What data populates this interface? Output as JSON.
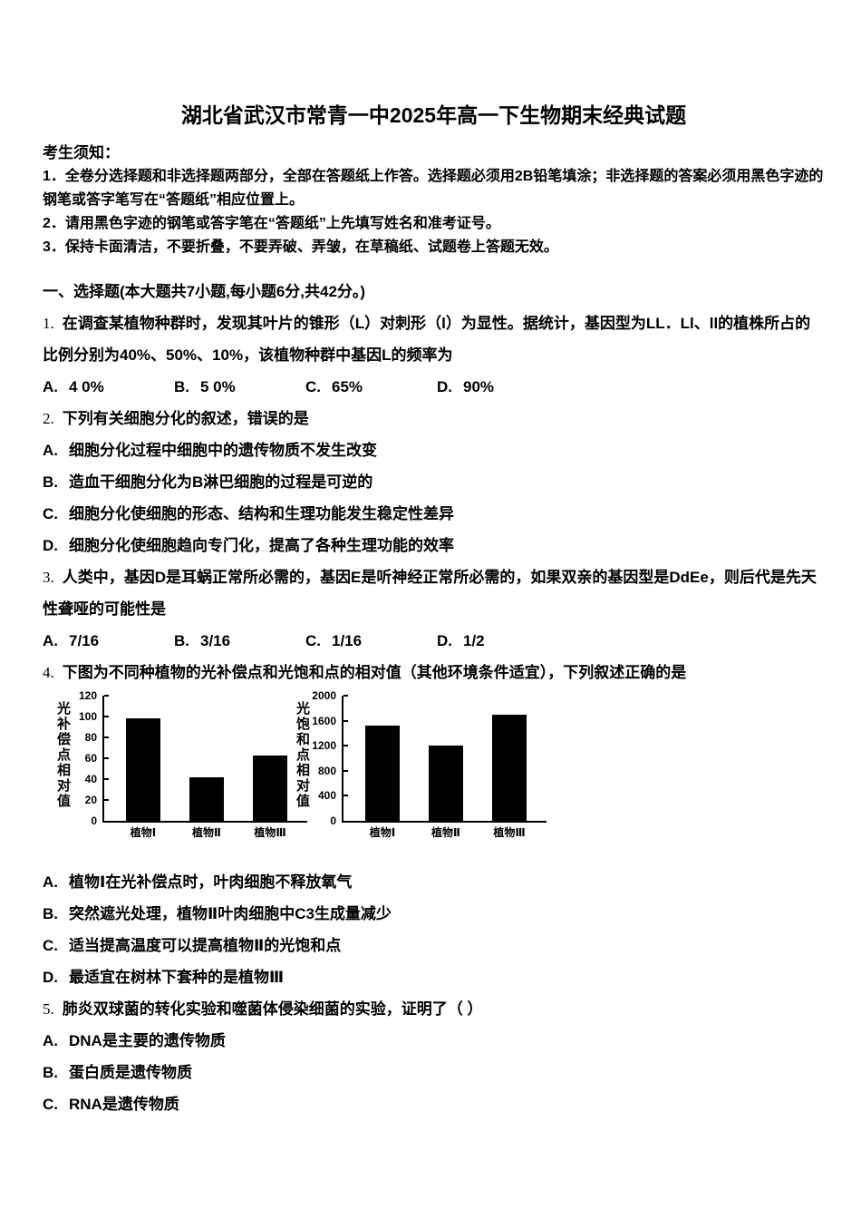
{
  "doc": {
    "title": "湖北省武汉市常青一中2025年高一下生物期末经典试题",
    "notice": {
      "heading": "考生须知：",
      "items": [
        "1．全卷分选择题和非选择题两部分，全部在答题纸上作答。选择题必须用2B铅笔填涂；非选择题的答案必须用黑色字迹的钢笔或答字笔写在“答题纸”相应位置上。",
        "2．请用黑色字迹的钢笔或答字笔在“答题纸”上先填写姓名和准考证号。",
        "3．保持卡面清洁，不要折叠，不要弄破、弄皱，在草稿纸、试题卷上答题无效。"
      ]
    },
    "section_heading": "一、选择题(本大题共7小题,每小题6分,共42分。)",
    "questions": [
      {
        "number": "1.",
        "text": "在调查某植物种群时，发现其叶片的锥形（L）对刺形（l）为显性。据统计，基因型为LL．Ll、ll的植株所占的比例分别为40%、50%、10%，该植物种群中基因L的频率为",
        "options": [
          {
            "label": "A.",
            "text": "4 0%"
          },
          {
            "label": "B.",
            "text": "5 0%"
          },
          {
            "label": "C.",
            "text": "65%"
          },
          {
            "label": "D.",
            "text": "90%"
          }
        ]
      },
      {
        "number": "2.",
        "text": "下列有关细胞分化的叙述，错误的是",
        "options": [
          {
            "label": "A.",
            "text": "细胞分化过程中细胞中的遗传物质不发生改变"
          },
          {
            "label": "B.",
            "text": "造血干细胞分化为B淋巴细胞的过程是可逆的"
          },
          {
            "label": "C.",
            "text": "细胞分化使细胞的形态、结构和生理功能发生稳定性差异"
          },
          {
            "label": "D.",
            "text": "细胞分化使细胞趋向专门化，提高了各种生理功能的效率"
          }
        ]
      },
      {
        "number": "3.",
        "text": "人类中，基因D是耳蜗正常所必需的，基因E是听神经正常所必需的，如果双亲的基因型是DdEe，则后代是先天性聋哑的可能性是",
        "options": [
          {
            "label": "A.",
            "text": "7/16"
          },
          {
            "label": "B.",
            "text": "3/16"
          },
          {
            "label": "C.",
            "text": "1/16"
          },
          {
            "label": "D.",
            "text": "1/2"
          }
        ]
      },
      {
        "number": "4.",
        "text": "下图为不同种植物的光补偿点和光饱和点的相对值（其他环境条件适宜），下列叙述正确的是",
        "options": [
          {
            "label": "A.",
            "text": "植物Ⅰ在光补偿点时，叶肉细胞不释放氧气"
          },
          {
            "label": "B.",
            "text": "突然遮光处理，植物Ⅱ叶肉细胞中C3生成量减少"
          },
          {
            "label": "C.",
            "text": "适当提高温度可以提高植物Ⅱ的光饱和点"
          },
          {
            "label": "D.",
            "text": "最适宜在树林下套种的是植物Ⅲ"
          }
        ]
      },
      {
        "number": "5.",
        "text": "肺炎双球菌的转化实验和噬菌体侵染细菌的实验，证明了（ ）",
        "options": [
          {
            "label": "A.",
            "text": "DNA是主要的遗传物质"
          },
          {
            "label": "B.",
            "text": "蛋白质是遗传物质"
          },
          {
            "label": "C.",
            "text": "RNA是遗传物质"
          }
        ]
      }
    ]
  },
  "chart_data": [
    {
      "type": "bar",
      "title": "",
      "ylabel": "光补偿点相对值",
      "xlabel": "",
      "categories": [
        "植物Ⅰ",
        "植物Ⅱ",
        "植物Ⅲ"
      ],
      "values": [
        98,
        42,
        63
      ],
      "yticks": [
        0,
        20,
        40,
        60,
        80,
        100,
        120
      ],
      "ylim": [
        0,
        120
      ],
      "bar_color": "#000000",
      "grid": false,
      "legend": false
    },
    {
      "type": "bar",
      "title": "",
      "ylabel": "光饱和点相对值",
      "xlabel": "",
      "categories": [
        "植物Ⅰ",
        "植物Ⅱ",
        "植物Ⅲ"
      ],
      "values": [
        1520,
        1210,
        1700
      ],
      "yticks": [
        0,
        400,
        800,
        1200,
        1600,
        2000
      ],
      "ylim": [
        0,
        2000
      ],
      "bar_color": "#000000",
      "grid": false,
      "legend": false
    }
  ]
}
